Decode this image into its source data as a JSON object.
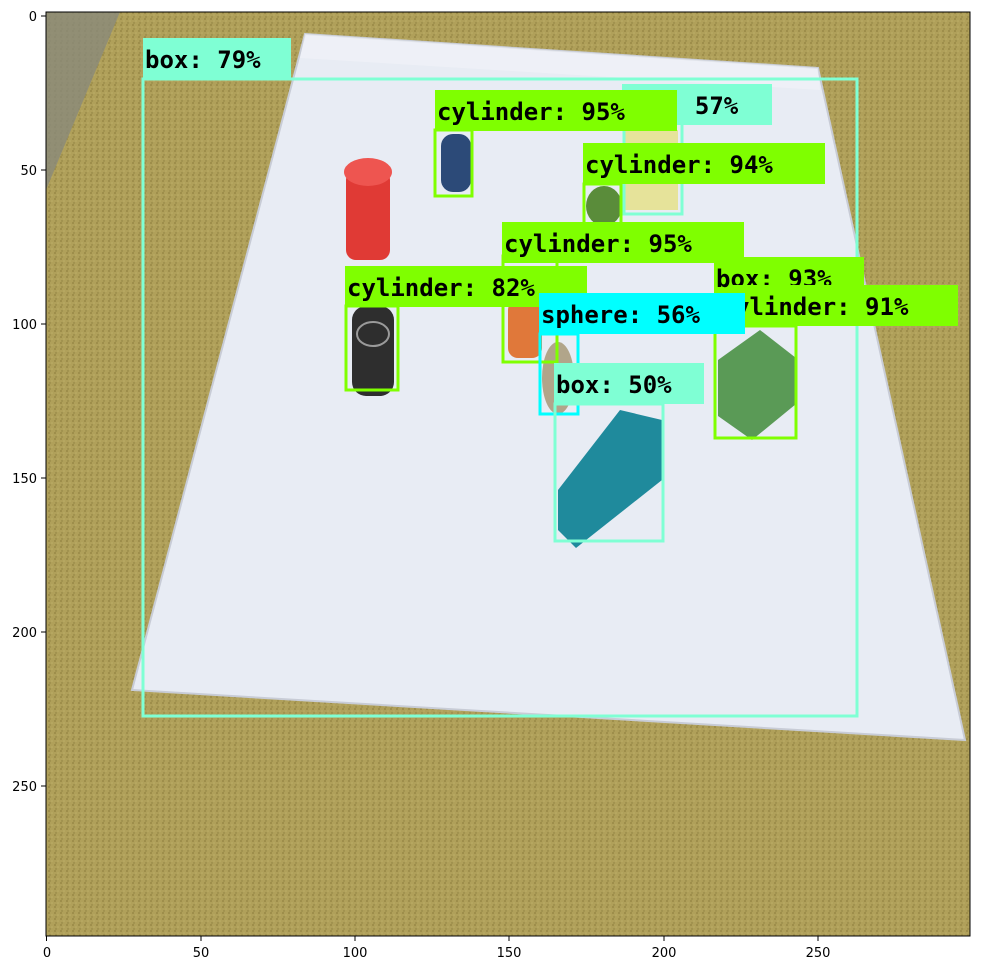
{
  "axes": {
    "x_ticks": [
      "0",
      "50",
      "100",
      "150",
      "200",
      "250"
    ],
    "y_ticks": [
      "0",
      "50",
      "100",
      "150",
      "200",
      "250"
    ],
    "x_range": [
      0,
      299
    ],
    "y_range": [
      0,
      299
    ]
  },
  "colors": {
    "aquamarine": "#7fffd4",
    "chartreuse": "#7fff00",
    "cyan": "#00ffff"
  },
  "detections": [
    {
      "label": "box: 79%",
      "color": "#7fffd4"
    },
    {
      "label": "cylinder: 95%",
      "color": "#7fff00"
    },
    {
      "label": ": 57%",
      "color": "#7fffd4"
    },
    {
      "label": "cylinder: 94%",
      "color": "#7fff00"
    },
    {
      "label": "cylinder: 95%",
      "color": "#7fff00"
    },
    {
      "label": "cylinder: 82%",
      "color": "#7fff00"
    },
    {
      "label": "box: 93%",
      "color": "#7fff00"
    },
    {
      "label": "ylinder: 91%",
      "color": "#7fff00"
    },
    {
      "label": "sphere: 56%",
      "color": "#00ffff"
    },
    {
      "label": "box: 50%",
      "color": "#7fffd4"
    }
  ]
}
